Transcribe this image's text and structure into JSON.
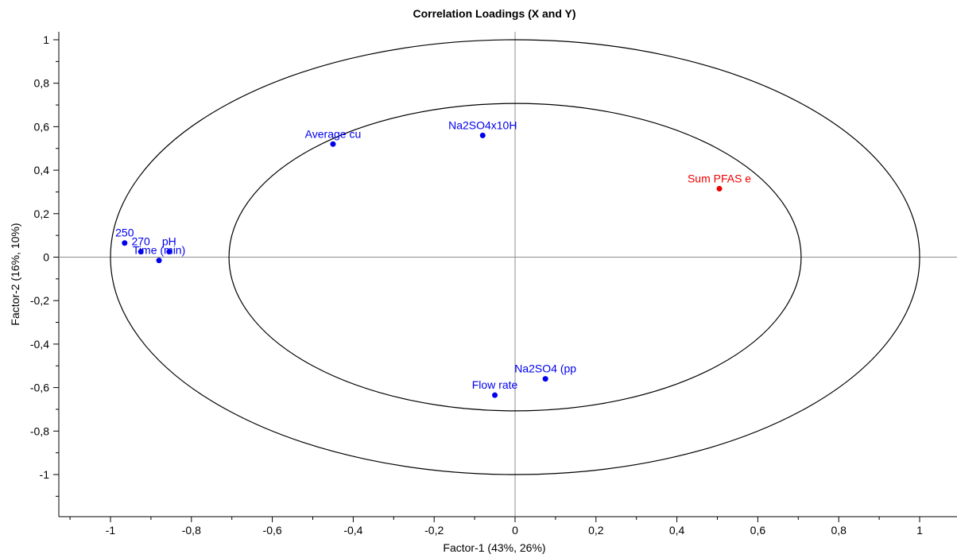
{
  "chart_data": {
    "type": "scatter",
    "title": "Correlation Loadings (X and Y)",
    "xlabel": "Factor-1 (43%, 26%)",
    "ylabel": "Factor-2 (16%, 10%)",
    "xlim": [
      -1.1,
      1.1
    ],
    "ylim": [
      -1.2,
      1.05
    ],
    "xticks": [
      -1,
      -0.8,
      -0.6,
      -0.4,
      -0.2,
      0,
      0.2,
      0.4,
      0.6,
      0.8,
      1
    ],
    "xtick_labels": [
      "-1",
      "-0,8",
      "-0,6",
      "-0,4",
      "-0,2",
      "0",
      "0,2",
      "0,4",
      "0,6",
      "0,8",
      "1"
    ],
    "yticks": [
      1,
      0.8,
      0.6,
      0.4,
      0.2,
      0,
      -0.2,
      -0.4,
      -0.6,
      -0.8,
      -1
    ],
    "ytick_labels": [
      "1",
      "0,8",
      "0,6",
      "0,4",
      "0,2",
      "0",
      "-0,2",
      "-0,4",
      "-0,6",
      "-0,8",
      "-1"
    ],
    "circles": [
      0.7071,
      1.0
    ],
    "points": [
      {
        "label": "Average cu",
        "x": -0.45,
        "y": 0.52,
        "color": "#0000ee"
      },
      {
        "label": "Na2SO4x10H",
        "x": -0.08,
        "y": 0.56,
        "color": "#0000ee"
      },
      {
        "label": "Sum PFAS e",
        "x": 0.505,
        "y": 0.315,
        "color": "#ee0000"
      },
      {
        "label": "250",
        "x": -0.965,
        "y": 0.065,
        "color": "#0000ee"
      },
      {
        "label": "270",
        "x": -0.925,
        "y": 0.025,
        "color": "#0000ee"
      },
      {
        "label": "pH",
        "x": -0.855,
        "y": 0.025,
        "color": "#0000ee"
      },
      {
        "label": "Time (min)",
        "x": -0.88,
        "y": -0.015,
        "color": "#0000ee"
      },
      {
        "label": "Na2SO4 (pp",
        "x": 0.075,
        "y": -0.56,
        "color": "#0000ee"
      },
      {
        "label": "Flow rate",
        "x": -0.05,
        "y": -0.635,
        "color": "#0000ee"
      }
    ],
    "grid": false,
    "legend": "none"
  }
}
